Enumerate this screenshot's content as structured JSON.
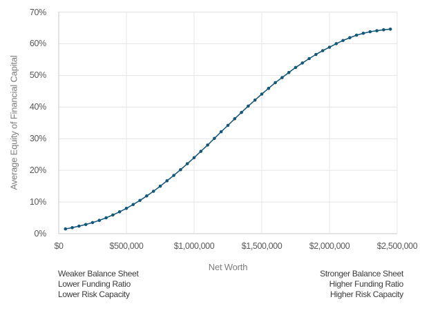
{
  "chart_data": {
    "type": "line",
    "title": "",
    "xlabel": "Net Worth",
    "ylabel": "Average Equity of Financial Capital",
    "xlim": [
      0,
      2500000
    ],
    "ylim": [
      0,
      70
    ],
    "grid": true,
    "legend": false,
    "x_ticks": [
      {
        "value": 0,
        "label": "$0"
      },
      {
        "value": 500000,
        "label": "$500,000"
      },
      {
        "value": 1000000,
        "label": "$1,000,000"
      },
      {
        "value": 1500000,
        "label": "$1,500,000"
      },
      {
        "value": 2000000,
        "label": "$2,000,000"
      },
      {
        "value": 2500000,
        "label": "$2,500,000"
      }
    ],
    "y_ticks": [
      {
        "value": 0,
        "label": "0%"
      },
      {
        "value": 10,
        "label": "10%"
      },
      {
        "value": 20,
        "label": "20%"
      },
      {
        "value": 30,
        "label": "30%"
      },
      {
        "value": 40,
        "label": "40%"
      },
      {
        "value": 50,
        "label": "50%"
      },
      {
        "value": 60,
        "label": "60%"
      },
      {
        "value": 70,
        "label": "70%"
      }
    ],
    "series": [
      {
        "name": "Average Equity of Financial Capital",
        "marker": "dot",
        "x": [
          50000,
          100000,
          150000,
          200000,
          250000,
          300000,
          350000,
          400000,
          450000,
          500000,
          550000,
          600000,
          650000,
          700000,
          750000,
          800000,
          850000,
          900000,
          950000,
          1000000,
          1050000,
          1100000,
          1150000,
          1200000,
          1250000,
          1300000,
          1350000,
          1400000,
          1450000,
          1500000,
          1550000,
          1600000,
          1650000,
          1700000,
          1750000,
          1800000,
          1850000,
          1900000,
          1950000,
          2000000,
          2050000,
          2100000,
          2150000,
          2200000,
          2250000,
          2300000,
          2350000,
          2400000,
          2450000
        ],
        "y": [
          1.5,
          1.9,
          2.4,
          2.9,
          3.5,
          4.2,
          5.0,
          5.9,
          6.9,
          8.0,
          9.2,
          10.5,
          11.9,
          13.4,
          15.0,
          16.7,
          18.4,
          20.2,
          22.1,
          24.0,
          26.0,
          28.0,
          30.1,
          32.2,
          34.2,
          36.3,
          38.3,
          40.3,
          42.2,
          44.1,
          45.9,
          47.7,
          49.3,
          50.9,
          52.5,
          53.9,
          55.3,
          56.6,
          57.8,
          58.9,
          60.0,
          61.0,
          61.9,
          62.7,
          63.3,
          63.8,
          64.1,
          64.4,
          64.6
        ]
      }
    ]
  },
  "annotations": {
    "left": [
      "Weaker Balance Sheet",
      "Lower Funding Ratio",
      "Lower Risk Capacity"
    ],
    "right": [
      "Stronger Balance Sheet",
      "Higher Funding Ratio",
      "Higher Risk Capacity"
    ]
  },
  "colors": {
    "line": "#175a7e",
    "marker": "#14577a",
    "grid": "#e4e4e4",
    "axis": "#c9c9c9",
    "tick_text": "#595959",
    "axis_title_text": "#7d7d7d",
    "annotation_text": "#3a3a3a",
    "background": "#ffffff"
  }
}
